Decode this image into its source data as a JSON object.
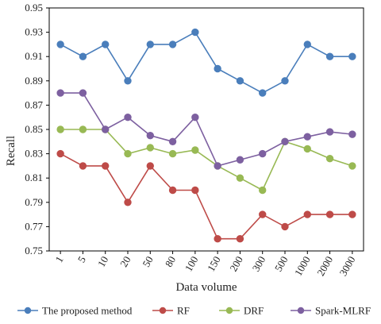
{
  "chart_data": {
    "type": "line",
    "title": "",
    "xlabel": "Data volume",
    "ylabel": "Recall",
    "categories": [
      "1",
      "5",
      "10",
      "20",
      "50",
      "80",
      "100",
      "150",
      "200",
      "300",
      "500",
      "1000",
      "2000",
      "3000"
    ],
    "ylim": [
      0.75,
      0.95
    ],
    "yticks": [
      "0.75",
      "0.77",
      "0.79",
      "0.81",
      "0.83",
      "0.85",
      "0.87",
      "0.89",
      "0.91",
      "0.93",
      "0.95"
    ],
    "grid": false,
    "legend_position": "bottom",
    "series": [
      {
        "name": "The proposed method",
        "color": "#4a7ebb",
        "values": [
          0.92,
          0.91,
          0.92,
          0.89,
          0.92,
          0.92,
          0.93,
          0.9,
          0.89,
          0.88,
          0.89,
          0.92,
          0.91,
          0.91
        ]
      },
      {
        "name": "RF",
        "color": "#be4b48",
        "values": [
          0.83,
          0.82,
          0.82,
          0.79,
          0.82,
          0.8,
          0.8,
          0.76,
          0.76,
          0.78,
          0.77,
          0.78,
          0.78,
          0.78
        ]
      },
      {
        "name": "DRF",
        "color": "#98b954",
        "values": [
          0.85,
          0.85,
          0.85,
          0.83,
          0.835,
          0.83,
          0.833,
          0.82,
          0.81,
          0.8,
          0.84,
          0.834,
          0.826,
          0.82
        ]
      },
      {
        "name": "Spark-MLRF",
        "color": "#7d60a0",
        "values": [
          0.88,
          0.88,
          0.85,
          0.86,
          0.845,
          0.84,
          0.86,
          0.82,
          0.825,
          0.83,
          0.84,
          0.844,
          0.848,
          0.846
        ]
      }
    ]
  }
}
